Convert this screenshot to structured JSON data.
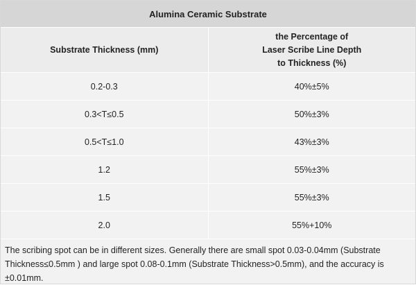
{
  "table": {
    "title": "Alumina Ceramic Substrate",
    "header": {
      "col1": "Substrate Thickness (mm)",
      "col2_lines": [
        "the Percentage of",
        "Laser Scribe Line Depth",
        "to Thickness (%)"
      ]
    },
    "rows": [
      {
        "thickness": "0.2-0.3",
        "percentage": "40%±5%"
      },
      {
        "thickness": "0.3<T≤0.5",
        "percentage": "50%±3%"
      },
      {
        "thickness": "0.5<T≤1.0",
        "percentage": "43%±3%"
      },
      {
        "thickness": "1.2",
        "percentage": "55%±3%"
      },
      {
        "thickness": "1.5",
        "percentage": "55%±3%"
      },
      {
        "thickness": "2.0",
        "percentage": "55%+10%"
      }
    ],
    "note": "The scribing spot can be in different sizes. Generally there are small spot 0.03-0.04mm (Substrate Thickness≤0.5mm ) and large spot 0.08-0.1mm (Substrate Thickness>0.5mm), and the accuracy is ±0.01mm."
  }
}
